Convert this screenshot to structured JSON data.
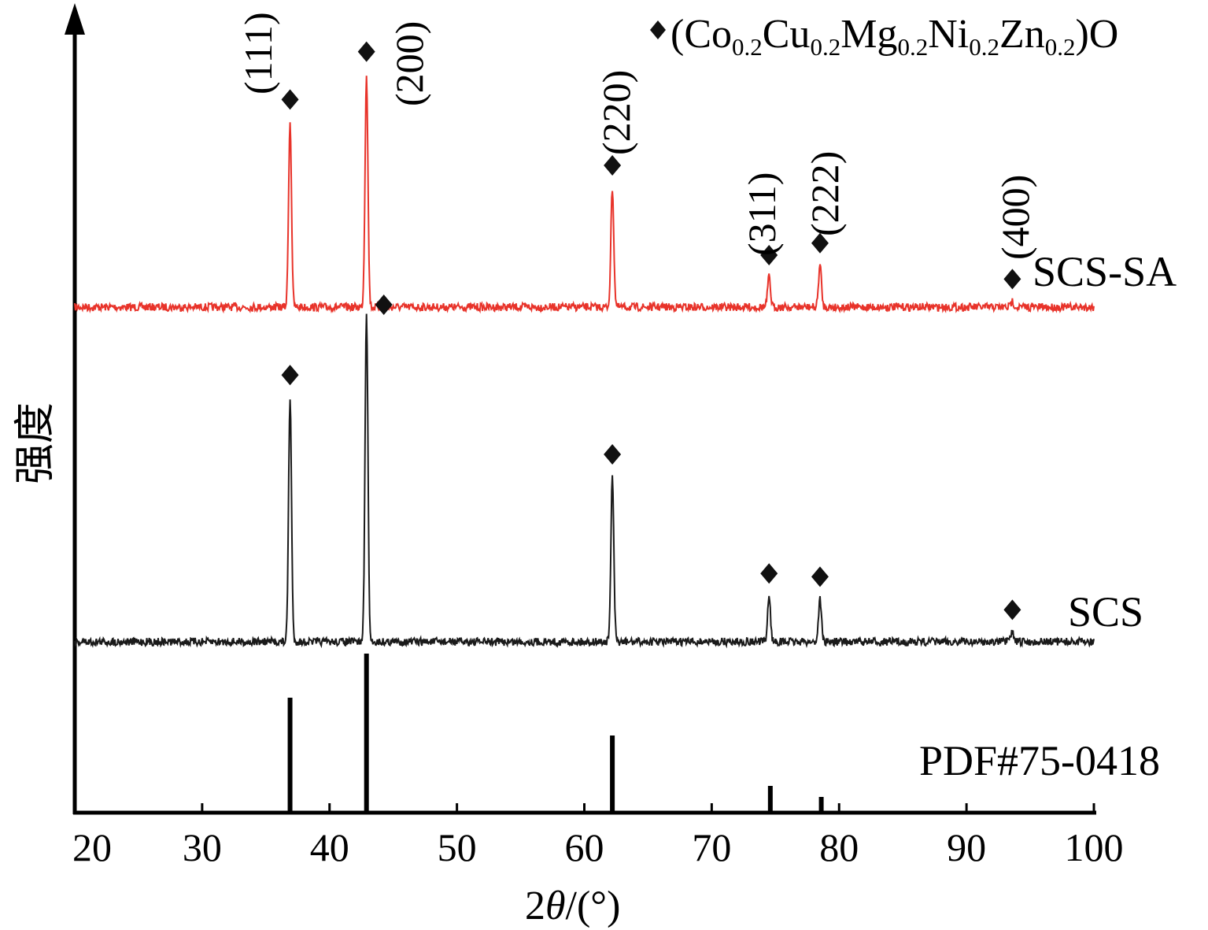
{
  "chart_data": {
    "type": "line",
    "xlabel_prefix": "2",
    "xlabel_theta": "θ",
    "xlabel_suffix": "/(°)",
    "ylabel": "强度",
    "xlim": [
      20,
      100
    ],
    "x_ticks": [
      "20",
      "30",
      "40",
      "50",
      "60",
      "70",
      "80",
      "90",
      "100"
    ],
    "legend": {
      "marker": "diamond",
      "parts": [
        {
          "text": "(Co",
          "sub": false
        },
        {
          "text": "0.2",
          "sub": true
        },
        {
          "text": "Cu",
          "sub": false
        },
        {
          "text": "0.2",
          "sub": true
        },
        {
          "text": "Mg",
          "sub": false
        },
        {
          "text": "0.2",
          "sub": true
        },
        {
          "text": "Ni",
          "sub": false
        },
        {
          "text": "0.2",
          "sub": true
        },
        {
          "text": "Zn",
          "sub": false
        },
        {
          "text": "0.2",
          "sub": true
        },
        {
          "text": ")O",
          "sub": false
        }
      ]
    },
    "series": [
      {
        "name": "SCS-SA",
        "color": "#e8332a",
        "peaks": [
          {
            "x": 36.9,
            "intensity": 0.62
          },
          {
            "x": 42.9,
            "intensity": 0.78
          },
          {
            "x": 62.2,
            "intensity": 0.4
          },
          {
            "x": 74.5,
            "intensity": 0.1
          },
          {
            "x": 78.5,
            "intensity": 0.14
          },
          {
            "x": 93.6,
            "intensity": 0.02
          }
        ],
        "hkl_labels": [
          "(111)",
          "(200)",
          "(220)",
          "(311)",
          "(222)",
          "(400)"
        ]
      },
      {
        "name": "SCS",
        "color": "#1a1a1a",
        "peaks": [
          {
            "x": 36.9,
            "intensity": 0.74
          },
          {
            "x": 42.9,
            "intensity": 1.0
          },
          {
            "x": 62.2,
            "intensity": 0.5
          },
          {
            "x": 74.5,
            "intensity": 0.14
          },
          {
            "x": 78.5,
            "intensity": 0.13
          },
          {
            "x": 93.6,
            "intensity": 0.03
          }
        ]
      },
      {
        "name": "PDF#75-0418",
        "color": "#000000",
        "type": "stick",
        "peaks": [
          {
            "x": 36.9,
            "intensity": 0.72
          },
          {
            "x": 42.9,
            "intensity": 1.0
          },
          {
            "x": 62.2,
            "intensity": 0.48
          },
          {
            "x": 74.6,
            "intensity": 0.16
          },
          {
            "x": 78.6,
            "intensity": 0.09
          }
        ]
      }
    ]
  }
}
